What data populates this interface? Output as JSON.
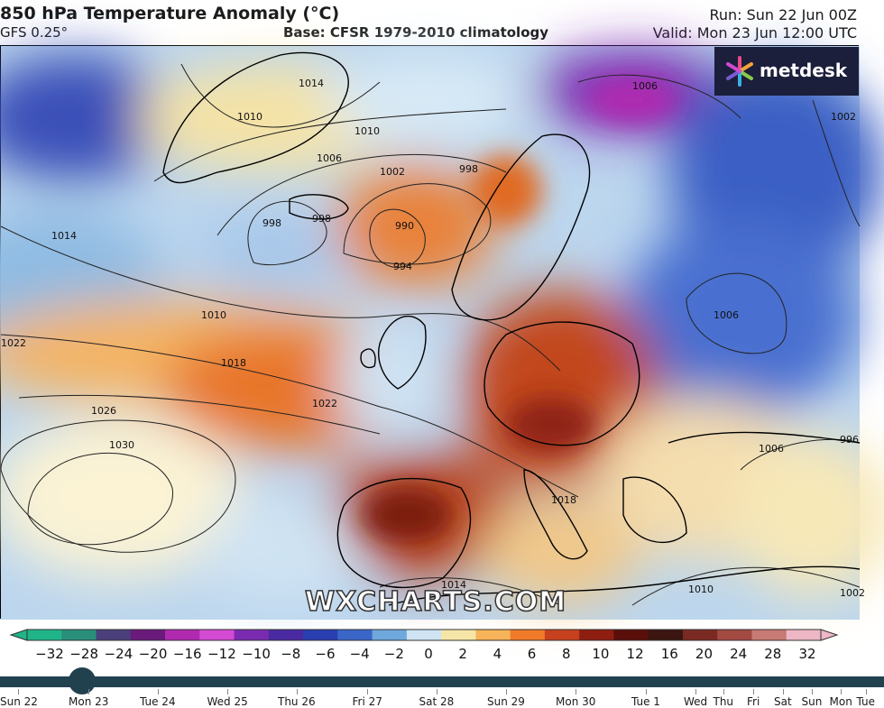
{
  "header": {
    "title": "850 hPa Temperature Anomaly (°C)",
    "model": "GFS 0.25°",
    "base": "Base: CFSR 1979-2010 climatology",
    "run": "Run: Sun 22 Jun 00Z",
    "valid": "Valid: Mon 23 Jun 12:00 UTC"
  },
  "logo": {
    "text": "metdesk",
    "icon": "metdesk-star-icon"
  },
  "watermark": "WXCHARTS.COM",
  "isobars": {
    "labels": [
      "1014",
      "1010",
      "1010",
      "1006",
      "1002",
      "998",
      "998",
      "998",
      "990",
      "994",
      "1014",
      "1010",
      "1022",
      "1018",
      "1022",
      "1026",
      "1030",
      "1018",
      "1014",
      "1010",
      "1006",
      "1006",
      "1006",
      "1002",
      "996",
      "1002"
    ]
  },
  "colorbar": {
    "ticks": [
      "−32",
      "−28",
      "−24",
      "−20",
      "−16",
      "−12",
      "−10",
      "−8",
      "−6",
      "−4",
      "−2",
      "0",
      "2",
      "4",
      "6",
      "8",
      "10",
      "12",
      "16",
      "20",
      "24",
      "28",
      "32"
    ],
    "colors": [
      "#1fb589",
      "#2a8f7a",
      "#4a3f7a",
      "#6a1a7a",
      "#b02ab0",
      "#d34ad3",
      "#7a2bb0",
      "#4a2aa0",
      "#2a3fb0",
      "#3a66c8",
      "#6fa8dc",
      "#cfe3f3",
      "#f5e6a8",
      "#f7b45a",
      "#f07a2a",
      "#c8411e",
      "#8e1e10",
      "#5a0e0a",
      "#3b1510",
      "#7a2a22",
      "#a34a42",
      "#c87a74",
      "#eeb7c6"
    ]
  },
  "timeline": {
    "days": [
      "Sun 22",
      "Mon 23",
      "Tue 24",
      "Wed 25",
      "Thu 26",
      "Fri 27",
      "Sat 28",
      "Sun 29",
      "Mon 30",
      "Tue 1",
      "Wed",
      "Thu",
      "Fri",
      "Sat",
      "Sun",
      "Mon",
      "Tue"
    ],
    "selected": "Mon 23"
  }
}
